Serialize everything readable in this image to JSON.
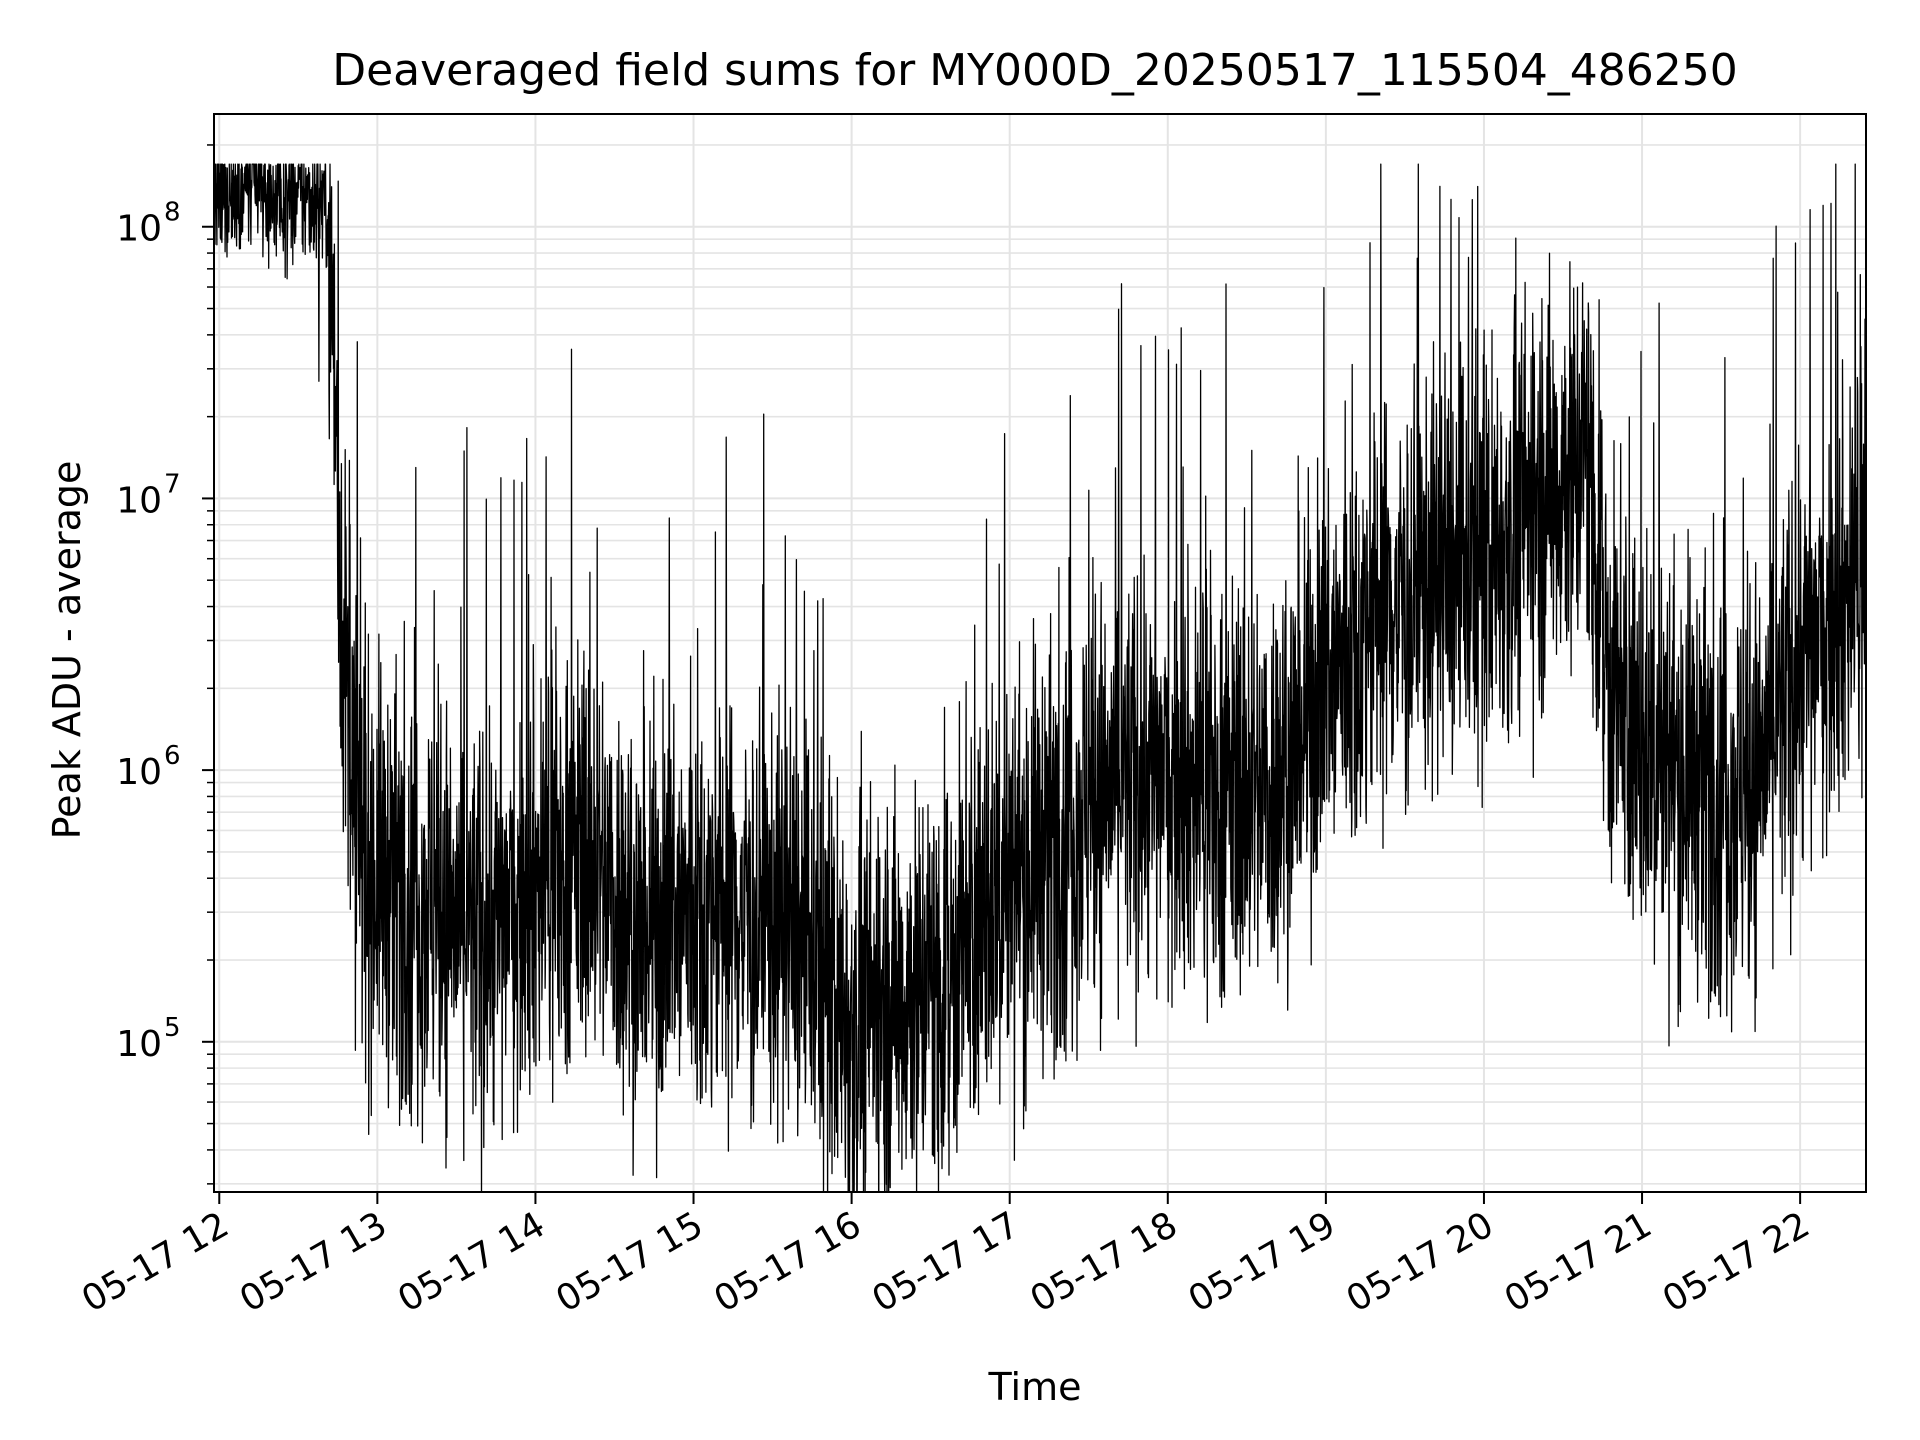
{
  "chart_data": {
    "type": "line",
    "title": "Deaveraged field sums for MY000D_20250517_115504_486250",
    "xlabel": "Time",
    "ylabel": "Peak ADU - average",
    "yscale": "log",
    "ylim": [
      28000,
      260000000
    ],
    "xlim": [
      "2025-05-17 11:58",
      "2025-05-17 22:25"
    ],
    "x_ticks": [
      {
        "label": "05-17 12",
        "time": "2025-05-17 12:00"
      },
      {
        "label": "05-17 13",
        "time": "2025-05-17 13:00"
      },
      {
        "label": "05-17 14",
        "time": "2025-05-17 14:00"
      },
      {
        "label": "05-17 15",
        "time": "2025-05-17 15:00"
      },
      {
        "label": "05-17 16",
        "time": "2025-05-17 16:00"
      },
      {
        "label": "05-17 17",
        "time": "2025-05-17 17:00"
      },
      {
        "label": "05-17 18",
        "time": "2025-05-17 18:00"
      },
      {
        "label": "05-17 19",
        "time": "2025-05-17 19:00"
      },
      {
        "label": "05-17 20",
        "time": "2025-05-17 20:00"
      },
      {
        "label": "05-17 21",
        "time": "2025-05-17 21:00"
      },
      {
        "label": "05-17 22",
        "time": "2025-05-17 22:00"
      }
    ],
    "y_ticks": [
      {
        "base": "10",
        "exp": "5",
        "value": 100000
      },
      {
        "base": "10",
        "exp": "6",
        "value": 1000000
      },
      {
        "base": "10",
        "exp": "7",
        "value": 10000000
      },
      {
        "base": "10",
        "exp": "8",
        "value": 100000000
      }
    ],
    "grid": true,
    "line_color": "#000000",
    "series": [
      {
        "x": [
          "2025-05-17 11:58",
          "2025-05-17 12:10",
          "2025-05-17 12:25",
          "2025-05-17 12:40",
          "2025-05-17 12:42",
          "2025-05-17 12:46",
          "2025-05-17 12:50",
          "2025-05-17 12:55",
          "2025-05-17 13:05",
          "2025-05-17 13:20",
          "2025-05-17 13:40",
          "2025-05-17 14:00",
          "2025-05-17 14:20",
          "2025-05-17 14:40",
          "2025-05-17 15:00",
          "2025-05-17 15:20",
          "2025-05-17 15:40",
          "2025-05-17 16:00",
          "2025-05-17 16:20",
          "2025-05-17 16:40",
          "2025-05-17 17:00",
          "2025-05-17 17:20",
          "2025-05-17 17:40",
          "2025-05-17 18:00",
          "2025-05-17 18:20",
          "2025-05-17 18:40",
          "2025-05-17 19:00",
          "2025-05-17 19:20",
          "2025-05-17 19:40",
          "2025-05-17 20:00",
          "2025-05-17 20:20",
          "2025-05-17 20:40",
          "2025-05-17 20:48",
          "2025-05-17 21:00",
          "2025-05-17 21:20",
          "2025-05-17 21:40",
          "2025-05-17 22:00",
          "2025-05-17 22:25"
        ],
        "y": [
          120000000,
          140000000,
          125000000,
          130000000,
          100000000,
          5000000,
          1000000,
          450000,
          400000,
          320000,
          250000,
          400000,
          500000,
          250000,
          300000,
          320000,
          250000,
          120000,
          150000,
          200000,
          400000,
          600000,
          900000,
          1000000,
          800000,
          900000,
          2000000,
          4000000,
          5000000,
          6000000,
          10000000,
          15000000,
          2000000,
          1200000,
          1000000,
          800000,
          2500000,
          6000000
        ]
      }
    ]
  }
}
